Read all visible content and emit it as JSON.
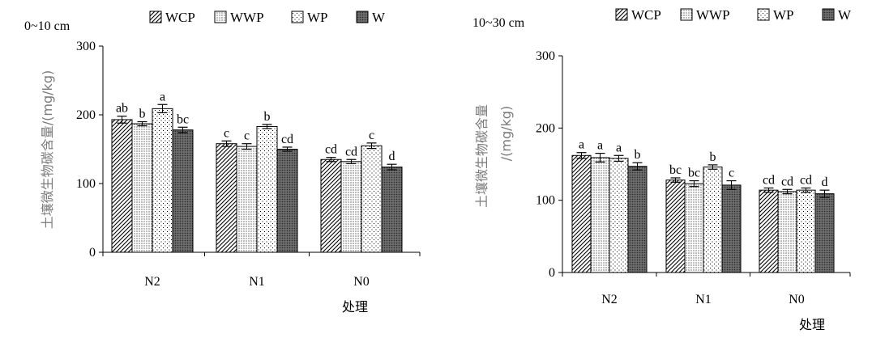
{
  "chart_data": [
    {
      "type": "bar",
      "panel_label": "0~10 cm",
      "categories": [
        "N2",
        "N1",
        "N0"
      ],
      "series": [
        {
          "name": "WCP",
          "values": [
            193,
            158,
            135
          ],
          "errors": [
            5,
            4,
            3
          ],
          "letters": [
            "ab",
            "c",
            "cd"
          ]
        },
        {
          "name": "WWP",
          "values": [
            187,
            154,
            132
          ],
          "errors": [
            3,
            4,
            3
          ],
          "letters": [
            "b",
            "c",
            "cd"
          ]
        },
        {
          "name": "WP",
          "values": [
            209,
            183,
            155
          ],
          "errors": [
            6,
            3,
            4
          ],
          "letters": [
            "a",
            "b",
            "c"
          ]
        },
        {
          "name": "W",
          "values": [
            178,
            150,
            124
          ],
          "errors": [
            4,
            3,
            4
          ],
          "letters": [
            "bc",
            "cd",
            "d"
          ]
        }
      ],
      "yticks": [
        0,
        100,
        200,
        300
      ],
      "ylim": [
        0,
        300
      ],
      "ylabel": "土壤微生物碳含量/(mg/kg)",
      "xlabel": "处理",
      "legend_position": "top"
    },
    {
      "type": "bar",
      "panel_label": "10~30 cm",
      "categories": [
        "N2",
        "N1",
        "N0"
      ],
      "series": [
        {
          "name": "WCP",
          "values": [
            162,
            128,
            114
          ],
          "errors": [
            4,
            3,
            3
          ],
          "letters": [
            "a",
            "bc",
            "cd"
          ]
        },
        {
          "name": "WWP",
          "values": [
            159,
            123,
            112
          ],
          "errors": [
            6,
            4,
            3
          ],
          "letters": [
            "a",
            "bc",
            "cd"
          ]
        },
        {
          "name": "WP",
          "values": [
            158,
            146,
            114
          ],
          "errors": [
            4,
            3,
            3
          ],
          "letters": [
            "a",
            "b",
            "cd"
          ]
        },
        {
          "name": "W",
          "values": [
            147,
            121,
            109
          ],
          "errors": [
            5,
            6,
            5
          ],
          "letters": [
            "b",
            "c",
            "d"
          ]
        }
      ],
      "yticks": [
        0,
        100,
        200,
        300
      ],
      "ylim": [
        0,
        300
      ],
      "ylabel_lines": [
        "土壤微生物碳含量",
        "/(mg/kg)"
      ],
      "xlabel": "处理",
      "legend_position": "top"
    }
  ],
  "series_styles": {
    "WCP": "hatch",
    "WWP": "dots",
    "WP": "sparse-dots",
    "W": "dark-dots"
  },
  "colors": {
    "axis": "#000000",
    "ylabel": "#7a7a7a",
    "dark_fill": "#5e5e5e"
  }
}
